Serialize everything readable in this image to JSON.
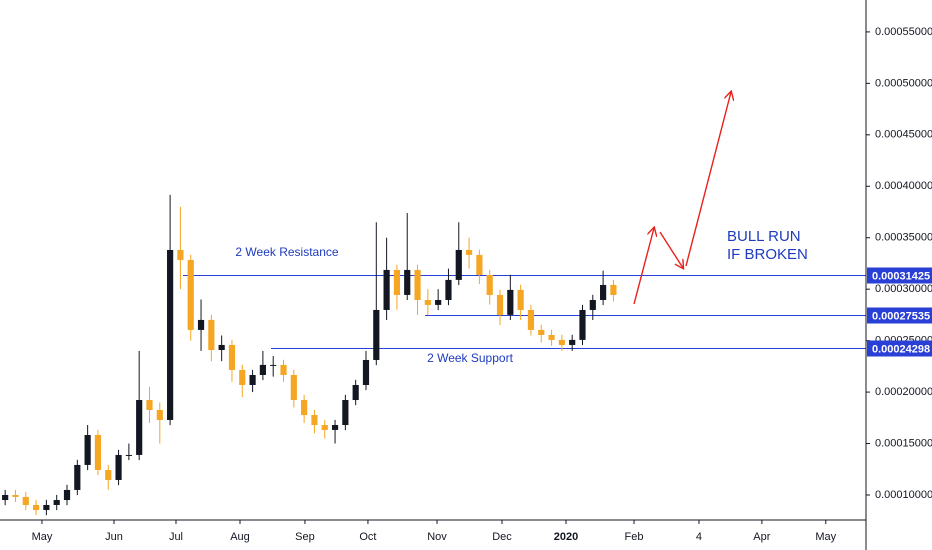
{
  "chart_data": {
    "type": "candlestick",
    "x": [
      0.5,
      1.5,
      2.5,
      3.5,
      4.5,
      5.5,
      6.5,
      7.5,
      8.5,
      9.5,
      10.5,
      11.5,
      12.5,
      13.5,
      14.5,
      15.5,
      16.5,
      17.5,
      18.5,
      19.5,
      20.5,
      21.5,
      22.5,
      23.5,
      24.5,
      25.5,
      26.5,
      27.5,
      28.5,
      29.5,
      30.5,
      31.5,
      32.5,
      33.5,
      34.5,
      35.5,
      36.5,
      37.5,
      38.5,
      39.5,
      40.5,
      41.5,
      42.5,
      43.5,
      44.5,
      45.5,
      46.5,
      47.5,
      48.5,
      49.5,
      50.5,
      51.5,
      52.5,
      53.5,
      54.5,
      55.5,
      56.5,
      57.5,
      58.5,
      59.5
    ],
    "open": [
      9.51e-05,
      0.0001,
      9.81e-05,
      9.03e-05,
      8.54e-05,
      9.03e-05,
      9.51e-05,
      0.0001049,
      0.0001292,
      0.0001583,
      0.0001243,
      0.0001146,
      0.0001389,
      0.0001389,
      0.0001923,
      0.0001826,
      0.0001729,
      0.0003381,
      0.0003284,
      0.0002604,
      0.0002701,
      0.0002409,
      0.0002458,
      0.0002215,
      0.0002069,
      0.0002166,
      0.0002264,
      0.0002264,
      0.0002166,
      0.0001923,
      0.0001777,
      0.000168,
      0.0001632,
      0.000168,
      0.0001923,
      0.0002069,
      0.0002312,
      0.0002798,
      0.0003187,
      0.0002944,
      0.0003187,
      0.0002895,
      0.0002847,
      0.0002895,
      0.000309,
      0.0003381,
      0.0003333,
      0.0003138,
      0.0002944,
      0.000275,
      0.0002993,
      0.0002798,
      0.0002604,
      0.0002555,
      0.0002507,
      0.0002458,
      0.0002507,
      0.0002798,
      0.0002895,
      0.0003041
    ],
    "high": [
      0.000105,
      0.000105,
      0.0001031,
      9.53e-05,
      9.53e-05,
      0.0001001,
      0.0001099,
      0.0001342,
      0.000168,
      0.0001633,
      0.0001293,
      0.0001439,
      0.00015,
      0.00024,
      0.000205,
      0.00019,
      0.0003916,
      0.00038,
      0.0003334,
      0.00029,
      0.0002751,
      0.000255,
      0.0002508,
      0.0002265,
      0.0002216,
      0.00024,
      0.000235,
      0.0002314,
      0.0002216,
      0.0001973,
      0.0001827,
      0.000173,
      0.000173,
      0.0001973,
      0.0002119,
      0.00024,
      0.000365,
      0.00035,
      0.0003237,
      0.000374,
      0.0003237,
      0.0003,
      0.0003,
      0.00032,
      0.000365,
      0.00035,
      0.0003383,
      0.0003188,
      0.0002994,
      0.000314,
      0.0003043,
      0.0002848,
      0.0002654,
      0.0002605,
      0.0002557,
      0.0002557,
      0.0002848,
      0.0002945,
      0.000318,
      0.0003091
    ],
    "low": [
      9.01e-05,
      9.31e-05,
      8.53e-05,
      8.04e-05,
      8.04e-05,
      8.53e-05,
      9.01e-05,
      9.99e-05,
      0.0001242,
      0.0001193,
      0.000105,
      0.0001096,
      0.0001339,
      0.0001339,
      0.00017,
      0.00015,
      0.0001679,
      0.0003,
      0.00025,
      0.00024,
      0.00023,
      0.00023,
      0.00021,
      0.000195,
      0.0002,
      0.0002116,
      0.000215,
      0.00021,
      0.000185,
      0.00017,
      0.00016,
      0.000155,
      0.00015,
      0.000163,
      0.0001873,
      0.0002019,
      0.0002262,
      0.00027,
      0.00028,
      0.0002894,
      0.000275,
      0.000275,
      0.0002797,
      0.0002845,
      0.000304,
      0.00032,
      0.000305,
      0.000285,
      0.000265,
      0.00027,
      0.00027,
      0.000255,
      0.000248,
      0.000245,
      0.00024,
      0.00024,
      0.0002457,
      0.00027,
      0.0002845,
      0.000288
    ],
    "close": [
      0.0001,
      9.81e-05,
      9.03e-05,
      8.54e-05,
      9.03e-05,
      9.51e-05,
      0.0001049,
      0.0001292,
      0.0001583,
      0.0001243,
      0.0001146,
      0.0001389,
      0.0001389,
      0.0001923,
      0.0001826,
      0.0001729,
      0.0003381,
      0.0003284,
      0.0002604,
      0.0002701,
      0.0002409,
      0.0002458,
      0.0002215,
      0.0002069,
      0.0002166,
      0.0002264,
      0.0002264,
      0.0002166,
      0.0001923,
      0.0001777,
      0.000168,
      0.0001632,
      0.000168,
      0.0001923,
      0.0002069,
      0.0002312,
      0.0002798,
      0.0003187,
      0.0002944,
      0.0003187,
      0.0002895,
      0.0002847,
      0.0002895,
      0.000309,
      0.0003381,
      0.0003333,
      0.0003138,
      0.0002944,
      0.000275,
      0.0002993,
      0.0002798,
      0.0002604,
      0.0002555,
      0.0002507,
      0.0002458,
      0.0002507,
      0.0002798,
      0.0002895,
      0.0003041,
      0.0002944
    ],
    "up_color": "#131722",
    "down_color": "#f5a623",
    "xlim": [
      0,
      84
    ],
    "ylim": [
      7.57e-05,
      0.000581
    ],
    "xticks": [
      {
        "value": 4.07,
        "label": "May"
      },
      {
        "value": 11.06,
        "label": "Jun"
      },
      {
        "value": 17.07,
        "label": "Jul"
      },
      {
        "value": 23.28,
        "label": "Aug"
      },
      {
        "value": 29.58,
        "label": "Sep"
      },
      {
        "value": 35.69,
        "label": "Oct"
      },
      {
        "value": 42.39,
        "label": "Nov"
      },
      {
        "value": 48.69,
        "label": "Dec"
      },
      {
        "value": 54.9,
        "label": "2020"
      },
      {
        "value": 61.5,
        "label": "Feb"
      },
      {
        "value": 67.8,
        "label": "4"
      },
      {
        "value": 73.9,
        "label": "Apr"
      },
      {
        "value": 80.1,
        "label": "May"
      }
    ],
    "yticks": [
      {
        "value": 0.0001,
        "label": "0.00010000"
      },
      {
        "value": 0.00015,
        "label": "0.00015000"
      },
      {
        "value": 0.0002,
        "label": "0.00020000"
      },
      {
        "value": 0.00025,
        "label": "0.00025000"
      },
      {
        "value": 0.0003,
        "label": "0.00030000"
      },
      {
        "value": 0.00035,
        "label": "0.00035000"
      },
      {
        "value": 0.0004,
        "label": "0.00040000"
      },
      {
        "value": 0.00045,
        "label": "0.00045000"
      },
      {
        "value": 0.0005,
        "label": "0.00050000"
      },
      {
        "value": 0.00055,
        "label": "0.00055000"
      }
    ],
    "levels": [
      {
        "value": 0.00031425,
        "label": "0.00031425"
      },
      {
        "value": 0.00027535,
        "label": "0.00027535"
      },
      {
        "value": 0.00024298,
        "label": "0.00024298"
      }
    ],
    "level_color": "#2a3fd6",
    "annotations": [
      "2 Week Resistance",
      "2 Week Support",
      "BULL RUN",
      "IF BROKEN"
    ]
  }
}
